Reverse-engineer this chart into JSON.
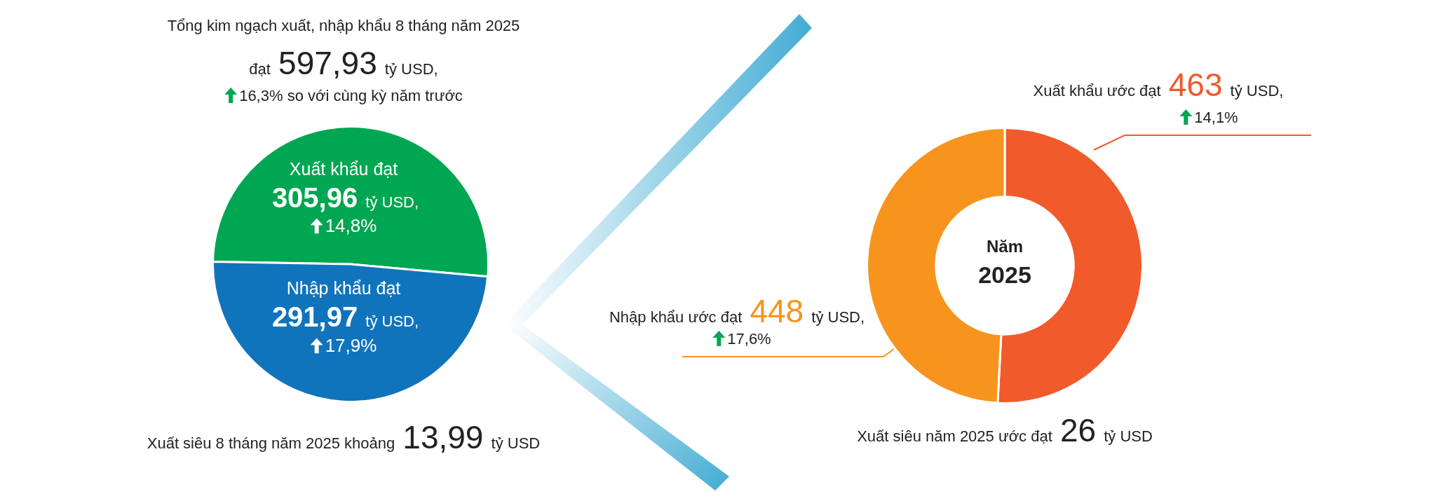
{
  "chart_data": [
    {
      "type": "pie",
      "title": "Tổng kim ngạch xuất, nhập khẩu 8 tháng năm 2025",
      "subtitle": "đạt 597,93 tỷ USD,",
      "categories": [
        "Xuất khẩu đạt",
        "Nhập khẩu đạt"
      ],
      "values": [
        305.96,
        291.97
      ],
      "colors": [
        "#00a651",
        "#1074bc"
      ],
      "value_labels": [
        "305,96 tỷ USD,",
        "291,97 tỷ USD,"
      ],
      "annotations": [
        "16,3% so với cùng kỳ năm trước",
        "14,8%",
        "17,9%",
        "Xuất siêu 8 tháng năm 2025 khoảng 13,99 tỷ USD"
      ]
    },
    {
      "type": "donut",
      "title": "Năm 2025",
      "categories": [
        "Xuất khẩu ước đạt",
        "Nhập khẩu ước đạt"
      ],
      "values": [
        463,
        448
      ],
      "colors": [
        "#f15a2b",
        "#f7941d"
      ],
      "value_labels": [
        "463 tỷ USD,",
        "448 tỷ USD,"
      ],
      "annotations": [
        "14,1%",
        "17,6%",
        "Xuất siêu năm 2025 ước đạt 26 tỷ USD"
      ]
    }
  ]
}
